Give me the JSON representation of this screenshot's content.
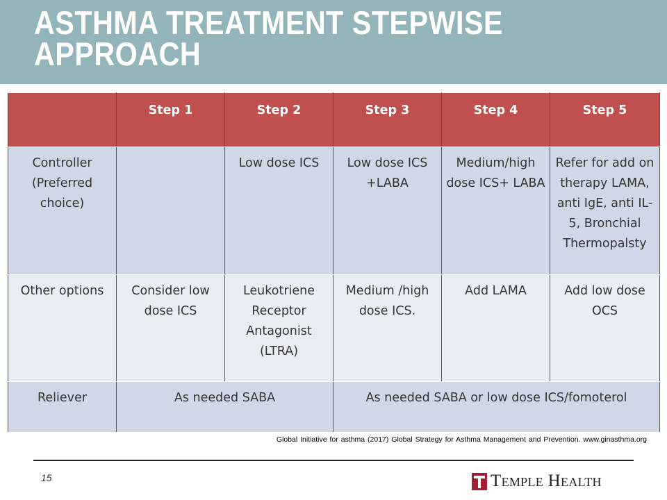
{
  "slide": {
    "title": "ASTHMA TREATMENT STEPWISE APPROACH",
    "page_number": "15",
    "citation": "Global Initiative for asthma (2017) Global Strategy for Asthma Management and Prevention. www.ginasthma.org",
    "logo_text": "Temple Health",
    "logo_icon": "temple-t-icon"
  },
  "table": {
    "headers": [
      "",
      "Step 1",
      "Step 2",
      "Step 3",
      "Step 4",
      "Step 5"
    ],
    "controller": {
      "label": "Controller (Preferred choice)",
      "cells": [
        "",
        "Low dose ICS",
        "Low dose ICS +LABA",
        "Medium/high dose ICS+ LABA",
        "Refer for add on therapy LAMA, anti IgE, anti IL-5, Bronchial Thermopalsty"
      ]
    },
    "other": {
      "label": "Other options",
      "cells": [
        "Consider low dose ICS",
        "Leukotriene Receptor Antagonist (LTRA)",
        "Medium /high dose ICS.",
        "Add LAMA",
        "Add low dose OCS"
      ]
    },
    "reliever": {
      "label": "Reliever",
      "cells": [
        "As needed SABA",
        "As needed SABA or low dose ICS/fomoterol"
      ]
    }
  },
  "colors": {
    "title_bar": "#93b4b8",
    "header_red": "#c0504d",
    "row_light": "#e9edf4",
    "row_mid": "#d0d8e8",
    "logo_red": "#a41e35"
  }
}
